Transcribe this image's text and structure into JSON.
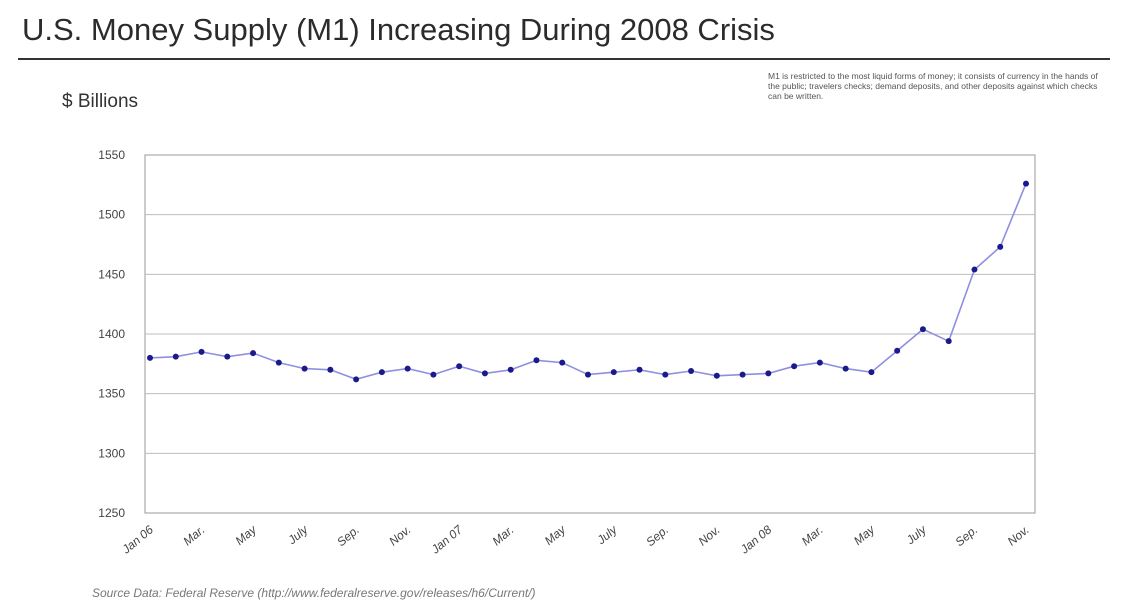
{
  "page": {
    "title": "U.S. Money Supply (M1) Increasing During 2008 Crisis",
    "units": "$ Billions",
    "note": "M1 is restricted to the most liquid forms of money; it consists of currency in the hands of the public; travelers checks; demand deposits, and other deposits against which checks can be written.",
    "source": "Source Data: Federal Reserve (http://www.federalreserve.gov/releases/h6/Current/)"
  },
  "chart_data": {
    "type": "line",
    "title": "",
    "xlabel": "",
    "ylabel": "",
    "ylim": [
      1250,
      1550
    ],
    "yticks": [
      1250,
      1300,
      1350,
      1400,
      1450,
      1500,
      1550
    ],
    "grid": true,
    "legend": "none",
    "x_tick_labels": [
      "Jan 06",
      "Mar.",
      "May",
      "July",
      "Sep.",
      "Nov.",
      "Jan 07",
      "Mar.",
      "May",
      "July",
      "Sep.",
      "Nov.",
      "Jan 08",
      "Mar.",
      "May",
      "July",
      "Sep.",
      "Nov."
    ],
    "x": [
      "Jan 06",
      "Feb 06",
      "Mar 06",
      "Apr 06",
      "May 06",
      "Jun 06",
      "Jul 06",
      "Aug 06",
      "Sep 06",
      "Oct 06",
      "Nov 06",
      "Dec 06",
      "Jan 07",
      "Feb 07",
      "Mar 07",
      "Apr 07",
      "May 07",
      "Jun 07",
      "Jul 07",
      "Aug 07",
      "Sep 07",
      "Oct 07",
      "Nov 07",
      "Dec 07",
      "Jan 08",
      "Feb 08",
      "Mar 08",
      "Apr 08",
      "May 08",
      "Jun 08",
      "Jul 08",
      "Aug 08",
      "Sep 08",
      "Oct 08",
      "Nov 08"
    ],
    "series": [
      {
        "values": [
          1380,
          1381,
          1385,
          1381,
          1384,
          1376,
          1371,
          1370,
          1362,
          1368,
          1371,
          1366,
          1373,
          1367,
          1370,
          1378,
          1376,
          1366,
          1368,
          1370,
          1366,
          1369,
          1365,
          1366,
          1367,
          1373,
          1376,
          1371,
          1368,
          1386,
          1404,
          1394,
          1454,
          1473,
          1526
        ],
        "color": "#1a1a8c"
      }
    ],
    "colors": {
      "line": "#8f8fe0",
      "marker": "#1a1a8c",
      "grid": "#bdbdbd",
      "frame": "#999999"
    }
  }
}
